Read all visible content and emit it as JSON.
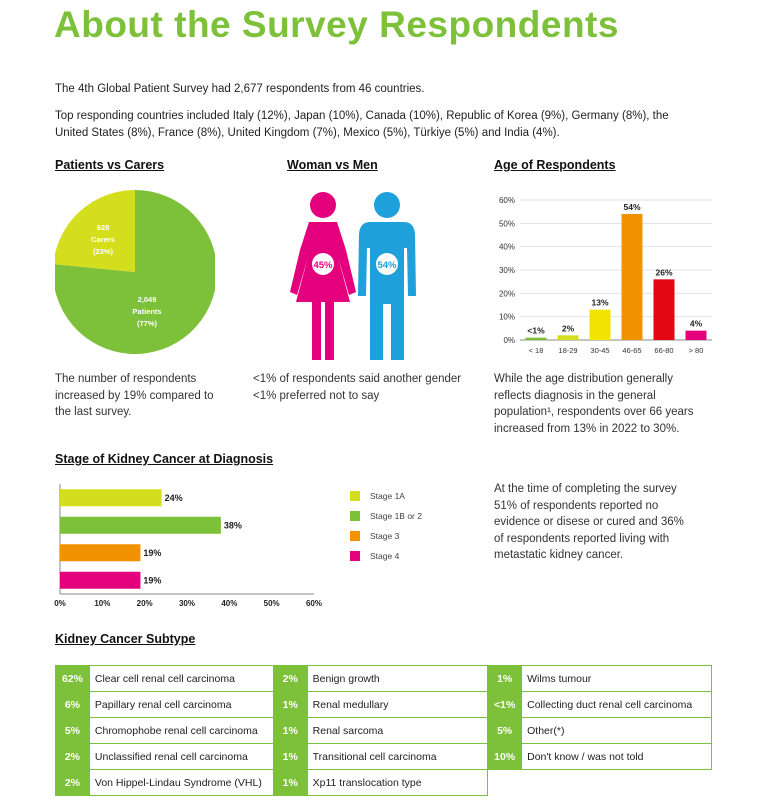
{
  "title": "About the Survey Respondents",
  "intro1": "The 4th Global Patient Survey had 2,677 respondents from 46 countries.",
  "intro2a": "Top responding countries included Italy (12%), Japan (10%), Canada (10%), Republic of Korea (9%), Germany (8%), the",
  "intro2b": "United States (8%), France (8%), United Kingdom (7%), Mexico (5%), Türkiye (5%) and India (4%).",
  "sections": {
    "patients": "Patients vs Carers",
    "gender": "Woman vs Men",
    "age": "Age of Respondents",
    "stage": "Stage of Kidney Cancer at Diagnosis",
    "subtype": "Kidney Cancer Subtype"
  },
  "pie": {
    "carers_count": "628",
    "carers_label": "Carers",
    "carers_pct": "(23%)",
    "patients_count": "2,049",
    "patients_label": "Patients",
    "patients_pct": "(77%)",
    "carers_color": "#d4de1c",
    "patients_color": "#7dc03a"
  },
  "gender": {
    "woman_pct": "45%",
    "man_pct": "54%",
    "woman_color": "#e4007d",
    "man_color": "#1ea0db"
  },
  "captions": {
    "c1": [
      "The number of respondents",
      "increased by 19% compared to",
      "the last survey."
    ],
    "c2": [
      "<1% of respondents said another gender",
      "<1% preferred not to say"
    ],
    "c3": [
      "While the age distribution generally",
      "reflects diagnosis in the general",
      "population¹, respondents over 66 years",
      "increased from 13% in 2022 to 30%."
    ],
    "c4": [
      "At the time of completing the survey",
      "51% of respondents reported no",
      "evidence or disese or cured and 36%",
      "of respondents reported living with",
      "metastatic kidney cancer."
    ]
  },
  "chart_data": [
    {
      "type": "pie",
      "categories": [
        "Carers",
        "Patients"
      ],
      "values": [
        628,
        2049
      ],
      "percent_labels": [
        "(23%)",
        "(77%)"
      ],
      "colors": [
        "#d4de1c",
        "#7dc03a"
      ]
    },
    {
      "type": "bar",
      "categories": [
        "< 18",
        "18-29",
        "30-45",
        "46-65",
        "66-80",
        "> 80"
      ],
      "values": [
        1,
        2,
        13,
        54,
        26,
        4
      ],
      "data_labels": [
        "<1%",
        "2%",
        "13%",
        "54%",
        "26%",
        "4%"
      ],
      "colors": [
        "#7dc03a",
        "#d4de1c",
        "#f2e400",
        "#f39200",
        "#e30613",
        "#e4007d"
      ],
      "yticks": [
        "0%",
        "10%",
        "20%",
        "30%",
        "40%",
        "50%",
        "60%"
      ],
      "ylim": [
        0,
        60
      ],
      "grid": true
    },
    {
      "type": "bar",
      "orientation": "horizontal",
      "categories": [
        "Stage 1A",
        "Stage 1B or 2",
        "Stage 3",
        "Stage 4"
      ],
      "values": [
        24,
        38,
        19,
        19
      ],
      "data_labels": [
        "24%",
        "38%",
        "19%",
        "19%"
      ],
      "colors": [
        "#d4de1c",
        "#7dc03a",
        "#f39200",
        "#e4007d"
      ],
      "xticks": [
        "0%",
        "10%",
        "20%",
        "30%",
        "40%",
        "50%",
        "60%"
      ],
      "xlim": [
        0,
        60
      ],
      "legend": "right"
    }
  ],
  "subtypes": [
    [
      {
        "pct": "62%",
        "name": "Clear cell renal cell carcinoma"
      },
      {
        "pct": "2%",
        "name": "Benign growth"
      },
      {
        "pct": "1%",
        "name": "Wilms tumour"
      }
    ],
    [
      {
        "pct": "6%",
        "name": "Papillary renal cell carcinoma"
      },
      {
        "pct": "1%",
        "name": "Renal medullary"
      },
      {
        "pct": "<1%",
        "name": "Collecting duct renal cell carcinoma"
      }
    ],
    [
      {
        "pct": "5%",
        "name": "Chromophobe renal cell carcinoma"
      },
      {
        "pct": "1%",
        "name": "Renal sarcoma"
      },
      {
        "pct": "5%",
        "name": "Other(*)"
      }
    ],
    [
      {
        "pct": "2%",
        "name": "Unclassified renal cell carcinoma"
      },
      {
        "pct": "1%",
        "name": "Transitional cell carcinoma"
      },
      {
        "pct": "10%",
        "name": "Don't know / was not told"
      }
    ],
    [
      {
        "pct": "2%",
        "name": "Von Hippel-Lindau Syndrome (VHL)"
      },
      {
        "pct": "1%",
        "name": "Xp11 translocation type"
      }
    ]
  ]
}
